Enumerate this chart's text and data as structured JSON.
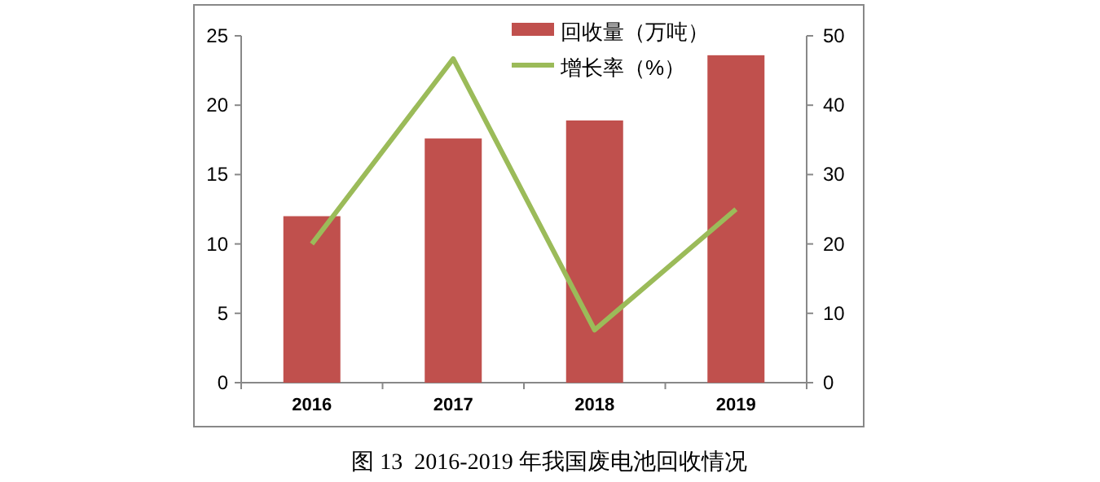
{
  "chart_data": {
    "type": "bar",
    "title": "图 13  2016-2019 年我国废电池回收情况",
    "categories": [
      "2016",
      "2017",
      "2018",
      "2019"
    ],
    "series": [
      {
        "name": "回收量（万吨）",
        "color": "#c0504d",
        "values": [
          12,
          17.6,
          18.9,
          23.6
        ]
      },
      {
        "name": "增长率（%）",
        "type": "line",
        "axis": "y2",
        "color": "#9bbb59",
        "values": [
          20,
          46.7,
          7.6,
          25
        ]
      }
    ],
    "ylim": [
      0,
      25
    ],
    "yticks": [
      0,
      5,
      10,
      15,
      20,
      25
    ],
    "y2lim": [
      0,
      50
    ],
    "y2ticks": [
      0,
      10,
      20,
      30,
      40,
      50
    ],
    "legend": "top right"
  }
}
